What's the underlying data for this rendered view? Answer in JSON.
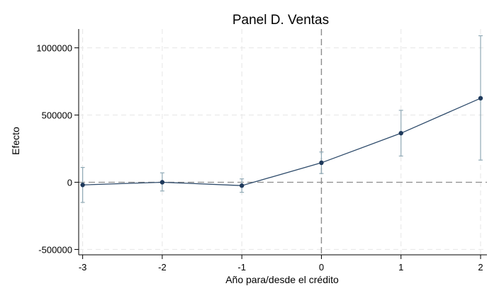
{
  "chart_data": {
    "type": "line",
    "title": "Panel D. Ventas",
    "xlabel": "Año para/desde el crédito",
    "ylabel": "Efecto",
    "x": [
      -3,
      -2,
      -1,
      0,
      1,
      2
    ],
    "xticks": [
      "-3",
      "-2",
      "-1",
      "0",
      "1",
      "2"
    ],
    "yticks": [
      {
        "value": -500000,
        "label": "-500000"
      },
      {
        "value": 0,
        "label": "0"
      },
      {
        "value": 500000,
        "label": "500000"
      },
      {
        "value": 1000000,
        "label": "1000000"
      }
    ],
    "xlim": [
      -3.05,
      2.08
    ],
    "ylim": [
      -540000,
      1140000
    ],
    "grid": true,
    "reference_lines": {
      "y": 0,
      "x": 0
    },
    "series": [
      {
        "values": [
          -20000,
          0,
          -25000,
          145000,
          365000,
          625000
        ],
        "ci_low": [
          -150000,
          -65000,
          -75000,
          65000,
          195000,
          165000
        ],
        "ci_high": [
          110000,
          70000,
          25000,
          225000,
          535000,
          1090000
        ]
      }
    ],
    "colors": {
      "line": "#2e4b6b",
      "marker": "#1f3a5c",
      "error_bar": "#8fa9b5",
      "grid": "#e6e6e6",
      "reference": "#8c8c8c",
      "axis": "#000000"
    }
  }
}
